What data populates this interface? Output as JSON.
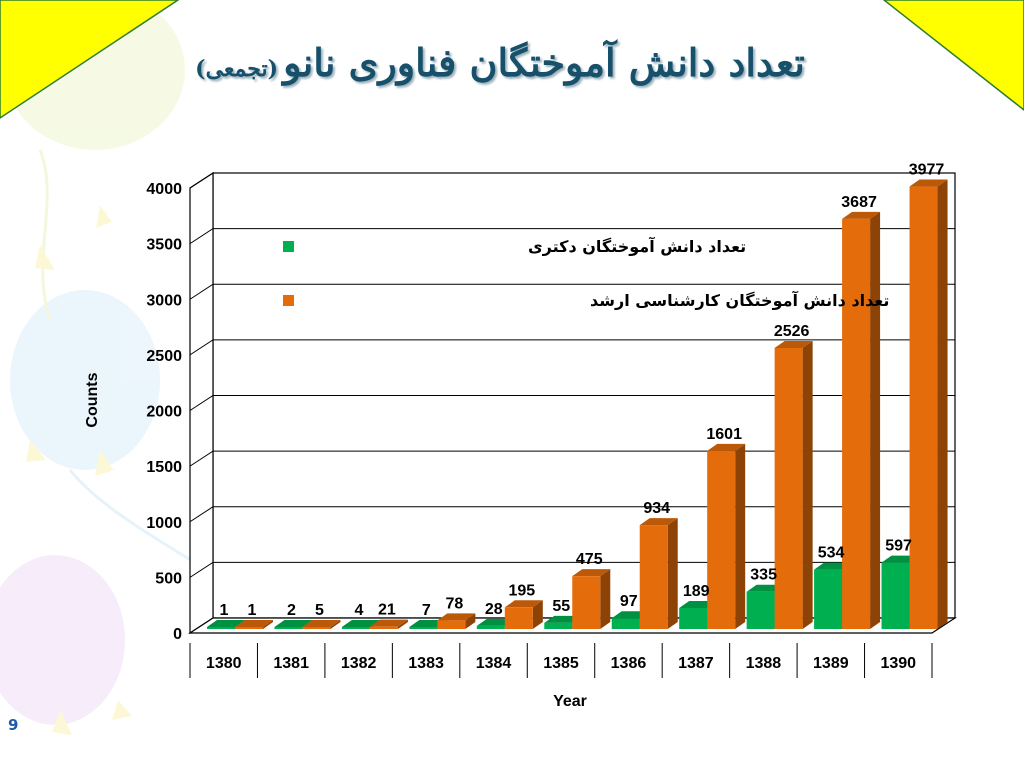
{
  "slide": {
    "title_main": "تعداد دانش آموختگان فناوری نانو",
    "title_sub": "(تجمعی)",
    "page_number": "9"
  },
  "colors": {
    "background": "#ffffff",
    "corner_triangle": "#ffff00",
    "series_doctoral": "#00b050",
    "series_masters": "#e46c0a",
    "title": "#17506b"
  },
  "chart_data": {
    "type": "bar",
    "title": "",
    "xlabel": "Year",
    "ylabel": "Counts",
    "ylim": [
      0,
      4000
    ],
    "yticks": [
      0,
      500,
      1000,
      1500,
      2000,
      2500,
      3000,
      3500,
      4000
    ],
    "grid": true,
    "legend_position": "top-left",
    "categories": [
      "1380",
      "1381",
      "1382",
      "1383",
      "1384",
      "1385",
      "1386",
      "1387",
      "1388",
      "1389",
      "1390"
    ],
    "series": [
      {
        "name": "تعداد دانش آموختگان دکتری",
        "color": "#00b050",
        "values": [
          1,
          2,
          4,
          7,
          28,
          55,
          97,
          189,
          335,
          534,
          597
        ]
      },
      {
        "name": "تعداد دانش آموختگان کارشناسی ارشد",
        "color": "#e46c0a",
        "values": [
          1,
          5,
          21,
          78,
          195,
          475,
          934,
          1601,
          2526,
          3687,
          3977
        ]
      }
    ]
  }
}
